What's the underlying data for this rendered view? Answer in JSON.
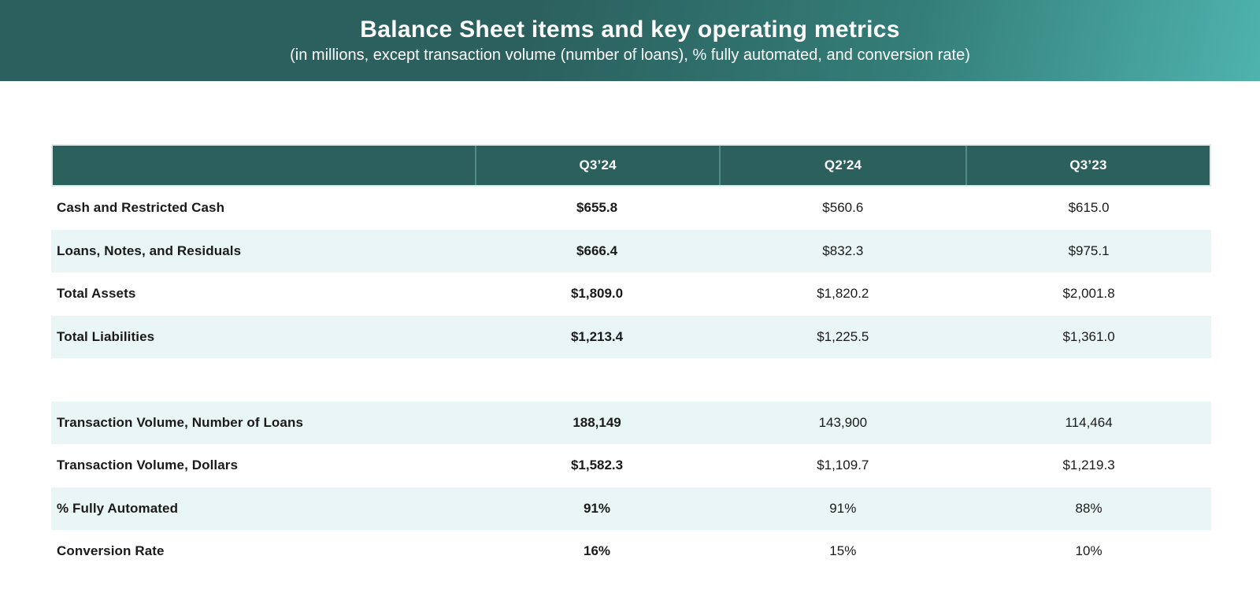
{
  "banner": {
    "title": "Balance Sheet items and key operating metrics",
    "subtitle": "(in millions, except transaction volume (number of loans), % fully automated, and conversion rate)"
  },
  "table": {
    "columns": [
      "",
      "Q3’24",
      "Q2’24",
      "Q3’23"
    ],
    "rows": [
      {
        "label": "Cash and Restricted Cash",
        "values": [
          "$655.8",
          "$560.6",
          "$615.0"
        ]
      },
      {
        "label": "Loans, Notes, and Residuals",
        "values": [
          "$666.4",
          "$832.3",
          "$975.1"
        ]
      },
      {
        "label": "Total Assets",
        "values": [
          "$1,809.0",
          "$1,820.2",
          "$2,001.8"
        ]
      },
      {
        "label": "Total Liabilities",
        "values": [
          "$1,213.4",
          "$1,225.5",
          "$1,361.0"
        ]
      },
      {
        "label": "Transaction Volume, Number of Loans",
        "values": [
          "188,149",
          "143,900",
          "114,464"
        ]
      },
      {
        "label": "Transaction Volume, Dollars",
        "values": [
          "$1,582.3",
          "$1,109.7",
          "$1,219.3"
        ]
      },
      {
        "label": "% Fully Automated",
        "values": [
          "91%",
          "91%",
          "88%"
        ]
      },
      {
        "label": "Conversion Rate",
        "values": [
          "16%",
          "15%",
          "10%"
        ]
      }
    ]
  },
  "colors": {
    "banner_gradient_start": "#2B605E",
    "banner_gradient_end": "#4FB3AE",
    "header_bg": "#2B605D",
    "stripe_bg": "#E9F6F5",
    "header_divider": "#4E8C85",
    "text": "#1A1A1A"
  },
  "chart_data": {
    "type": "table",
    "title": "Balance Sheet items and key operating metrics",
    "subtitle": "(in millions, except transaction volume (number of loans), % fully automated, and conversion rate)",
    "columns": [
      "",
      "Q3'24",
      "Q2'24",
      "Q3'23"
    ],
    "rows": [
      [
        "Cash and Restricted Cash",
        "$655.8",
        "$560.6",
        "$615.0"
      ],
      [
        "Loans, Notes, and Residuals",
        "$666.4",
        "$832.3",
        "$975.1"
      ],
      [
        "Total Assets",
        "$1,809.0",
        "$1,820.2",
        "$2,001.8"
      ],
      [
        "Total Liabilities",
        "$1,213.4",
        "$1,225.5",
        "$1,361.0"
      ],
      [
        "Transaction Volume, Number of Loans",
        "188,149",
        "143,900",
        "114,464"
      ],
      [
        "Transaction Volume, Dollars",
        "$1,582.3",
        "$1,109.7",
        "$1,219.3"
      ],
      [
        "% Fully Automated",
        "91%",
        "91%",
        "88%"
      ],
      [
        "Conversion Rate",
        "16%",
        "15%",
        "10%"
      ]
    ],
    "layout_hints": {
      "first_value_column_bold": true,
      "striped_rows": true,
      "spacer_between": [
        "Total Liabilities",
        "Transaction Volume, Number of Loans"
      ]
    }
  }
}
